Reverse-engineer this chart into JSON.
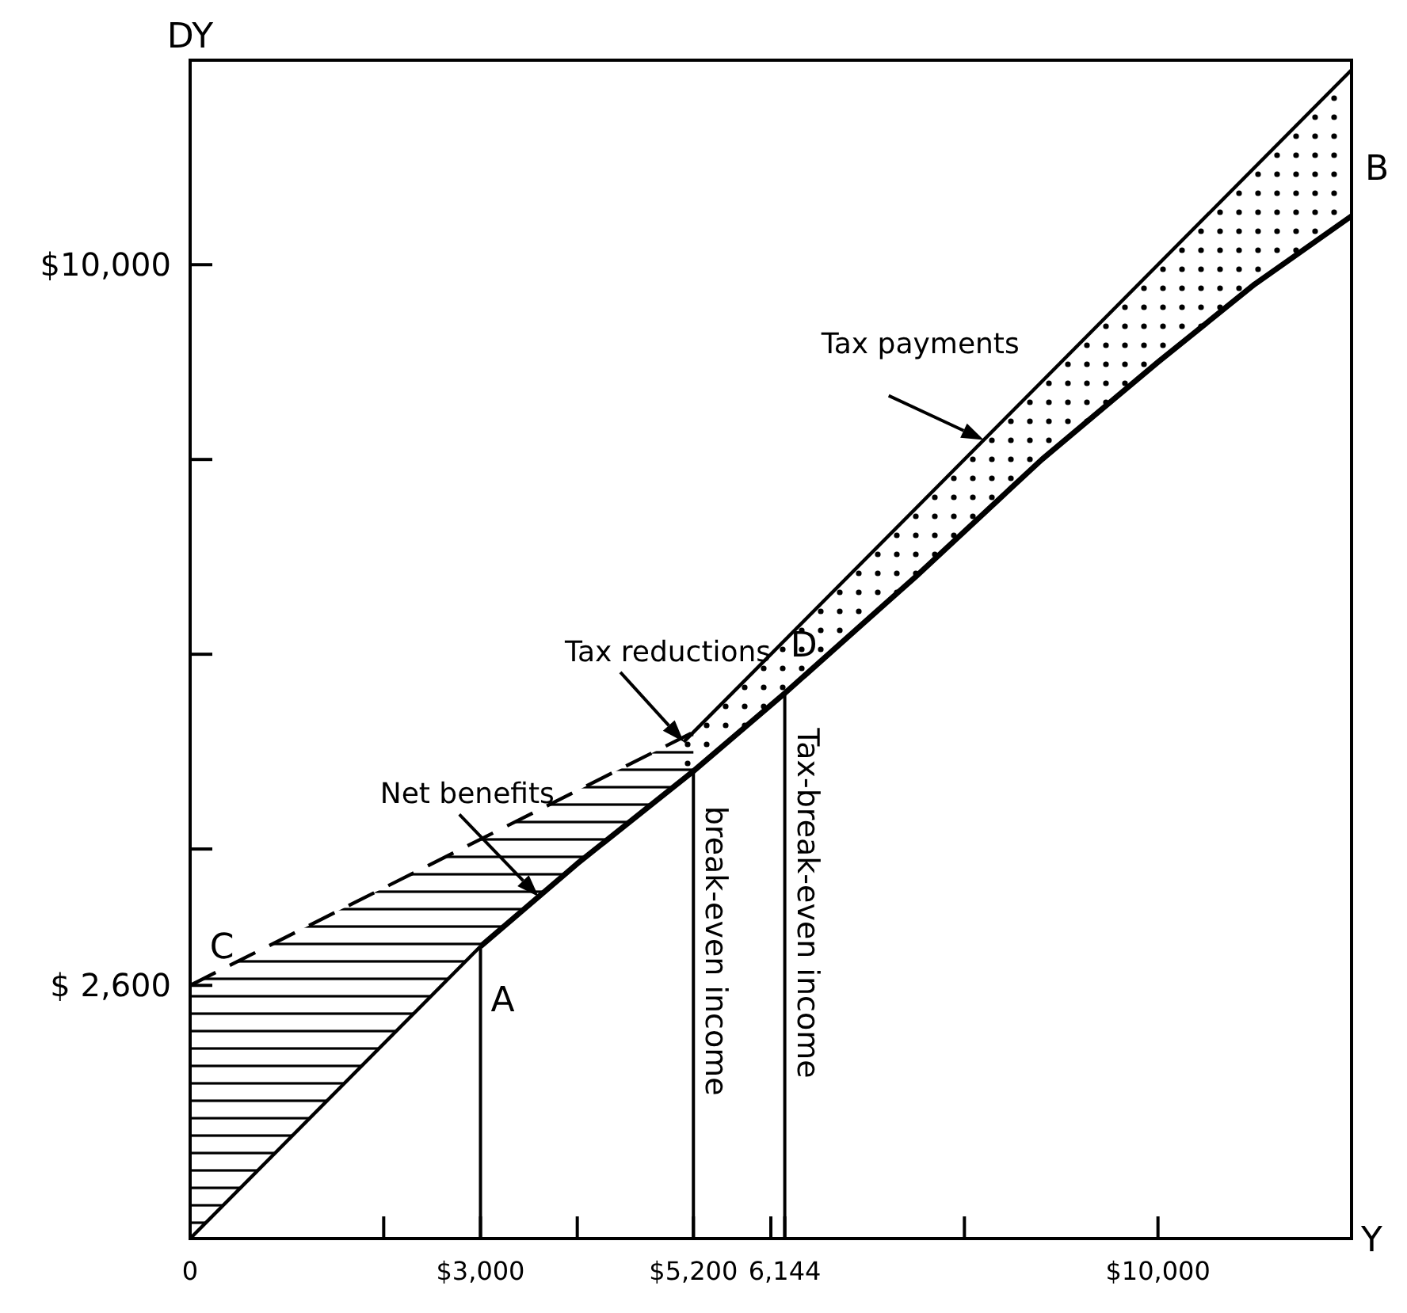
{
  "chart_data": {
    "type": "line",
    "xlabel": "Y",
    "ylabel": "DY",
    "xlim": [
      0,
      12000
    ],
    "ylim": [
      0,
      12100
    ],
    "xticks": [
      0,
      {
        "value": 2000,
        "label": null
      },
      {
        "value": 3000,
        "label": "$3,000"
      },
      {
        "value": 4000,
        "label": null
      },
      {
        "value": 5200,
        "label": "$5,200"
      },
      {
        "value": 6000,
        "label": null
      },
      {
        "value": 6144,
        "label": "6,144"
      },
      {
        "value": 8000,
        "label": null
      },
      {
        "value": 10000,
        "label": "$10,000"
      }
    ],
    "yticks": [
      {
        "value": 2600,
        "label": "$ 2,600"
      },
      {
        "value": 4000,
        "label": null
      },
      {
        "value": 6000,
        "label": null
      },
      {
        "value": 8000,
        "label": null
      },
      {
        "value": 10000,
        "label": "$10,000"
      }
    ],
    "series": [
      {
        "color": "#000000",
        "line_style": "solid",
        "x": [
          0,
          3000
        ],
        "values": [
          0,
          3000
        ]
      },
      {
        "color": "#000000",
        "line_style": "solid",
        "x": [
          5100,
          12000
        ],
        "values": [
          5100,
          12000
        ]
      },
      {
        "color": "#000000",
        "line_style": "dashed",
        "x": [
          0,
          5200
        ],
        "values": [
          2600,
          5200
        ]
      },
      {
        "color": "#000000",
        "line_style": "solid",
        "x": [
          3000,
          4000,
          5200,
          6144,
          7500,
          8800,
          10000,
          11000,
          12000
        ],
        "values": [
          3000,
          3850,
          4800,
          5600,
          6800,
          8000,
          9000,
          9800,
          10500
        ]
      }
    ],
    "ref_lines": [
      {
        "axis": "x",
        "value": 3000
      },
      {
        "axis": "x",
        "value": 5200,
        "label": "break-even income"
      },
      {
        "axis": "x",
        "value": 6144,
        "label": "Tax-break-even income"
      }
    ],
    "annotations": [
      {
        "text": "A",
        "x": 3000,
        "y": 3000
      },
      {
        "text": "B",
        "x": 12000,
        "y": 10500
      },
      {
        "text": "C",
        "x": 0,
        "y": 2600
      },
      {
        "text": "D",
        "x": 6144,
        "y": 5600
      },
      {
        "text": "Net benefits",
        "x": 3600,
        "y": 3510
      },
      {
        "text": "Tax reductions",
        "x": 5100,
        "y": 5100
      },
      {
        "text": "Tax payments",
        "x": 8200,
        "y": 8200
      }
    ]
  }
}
